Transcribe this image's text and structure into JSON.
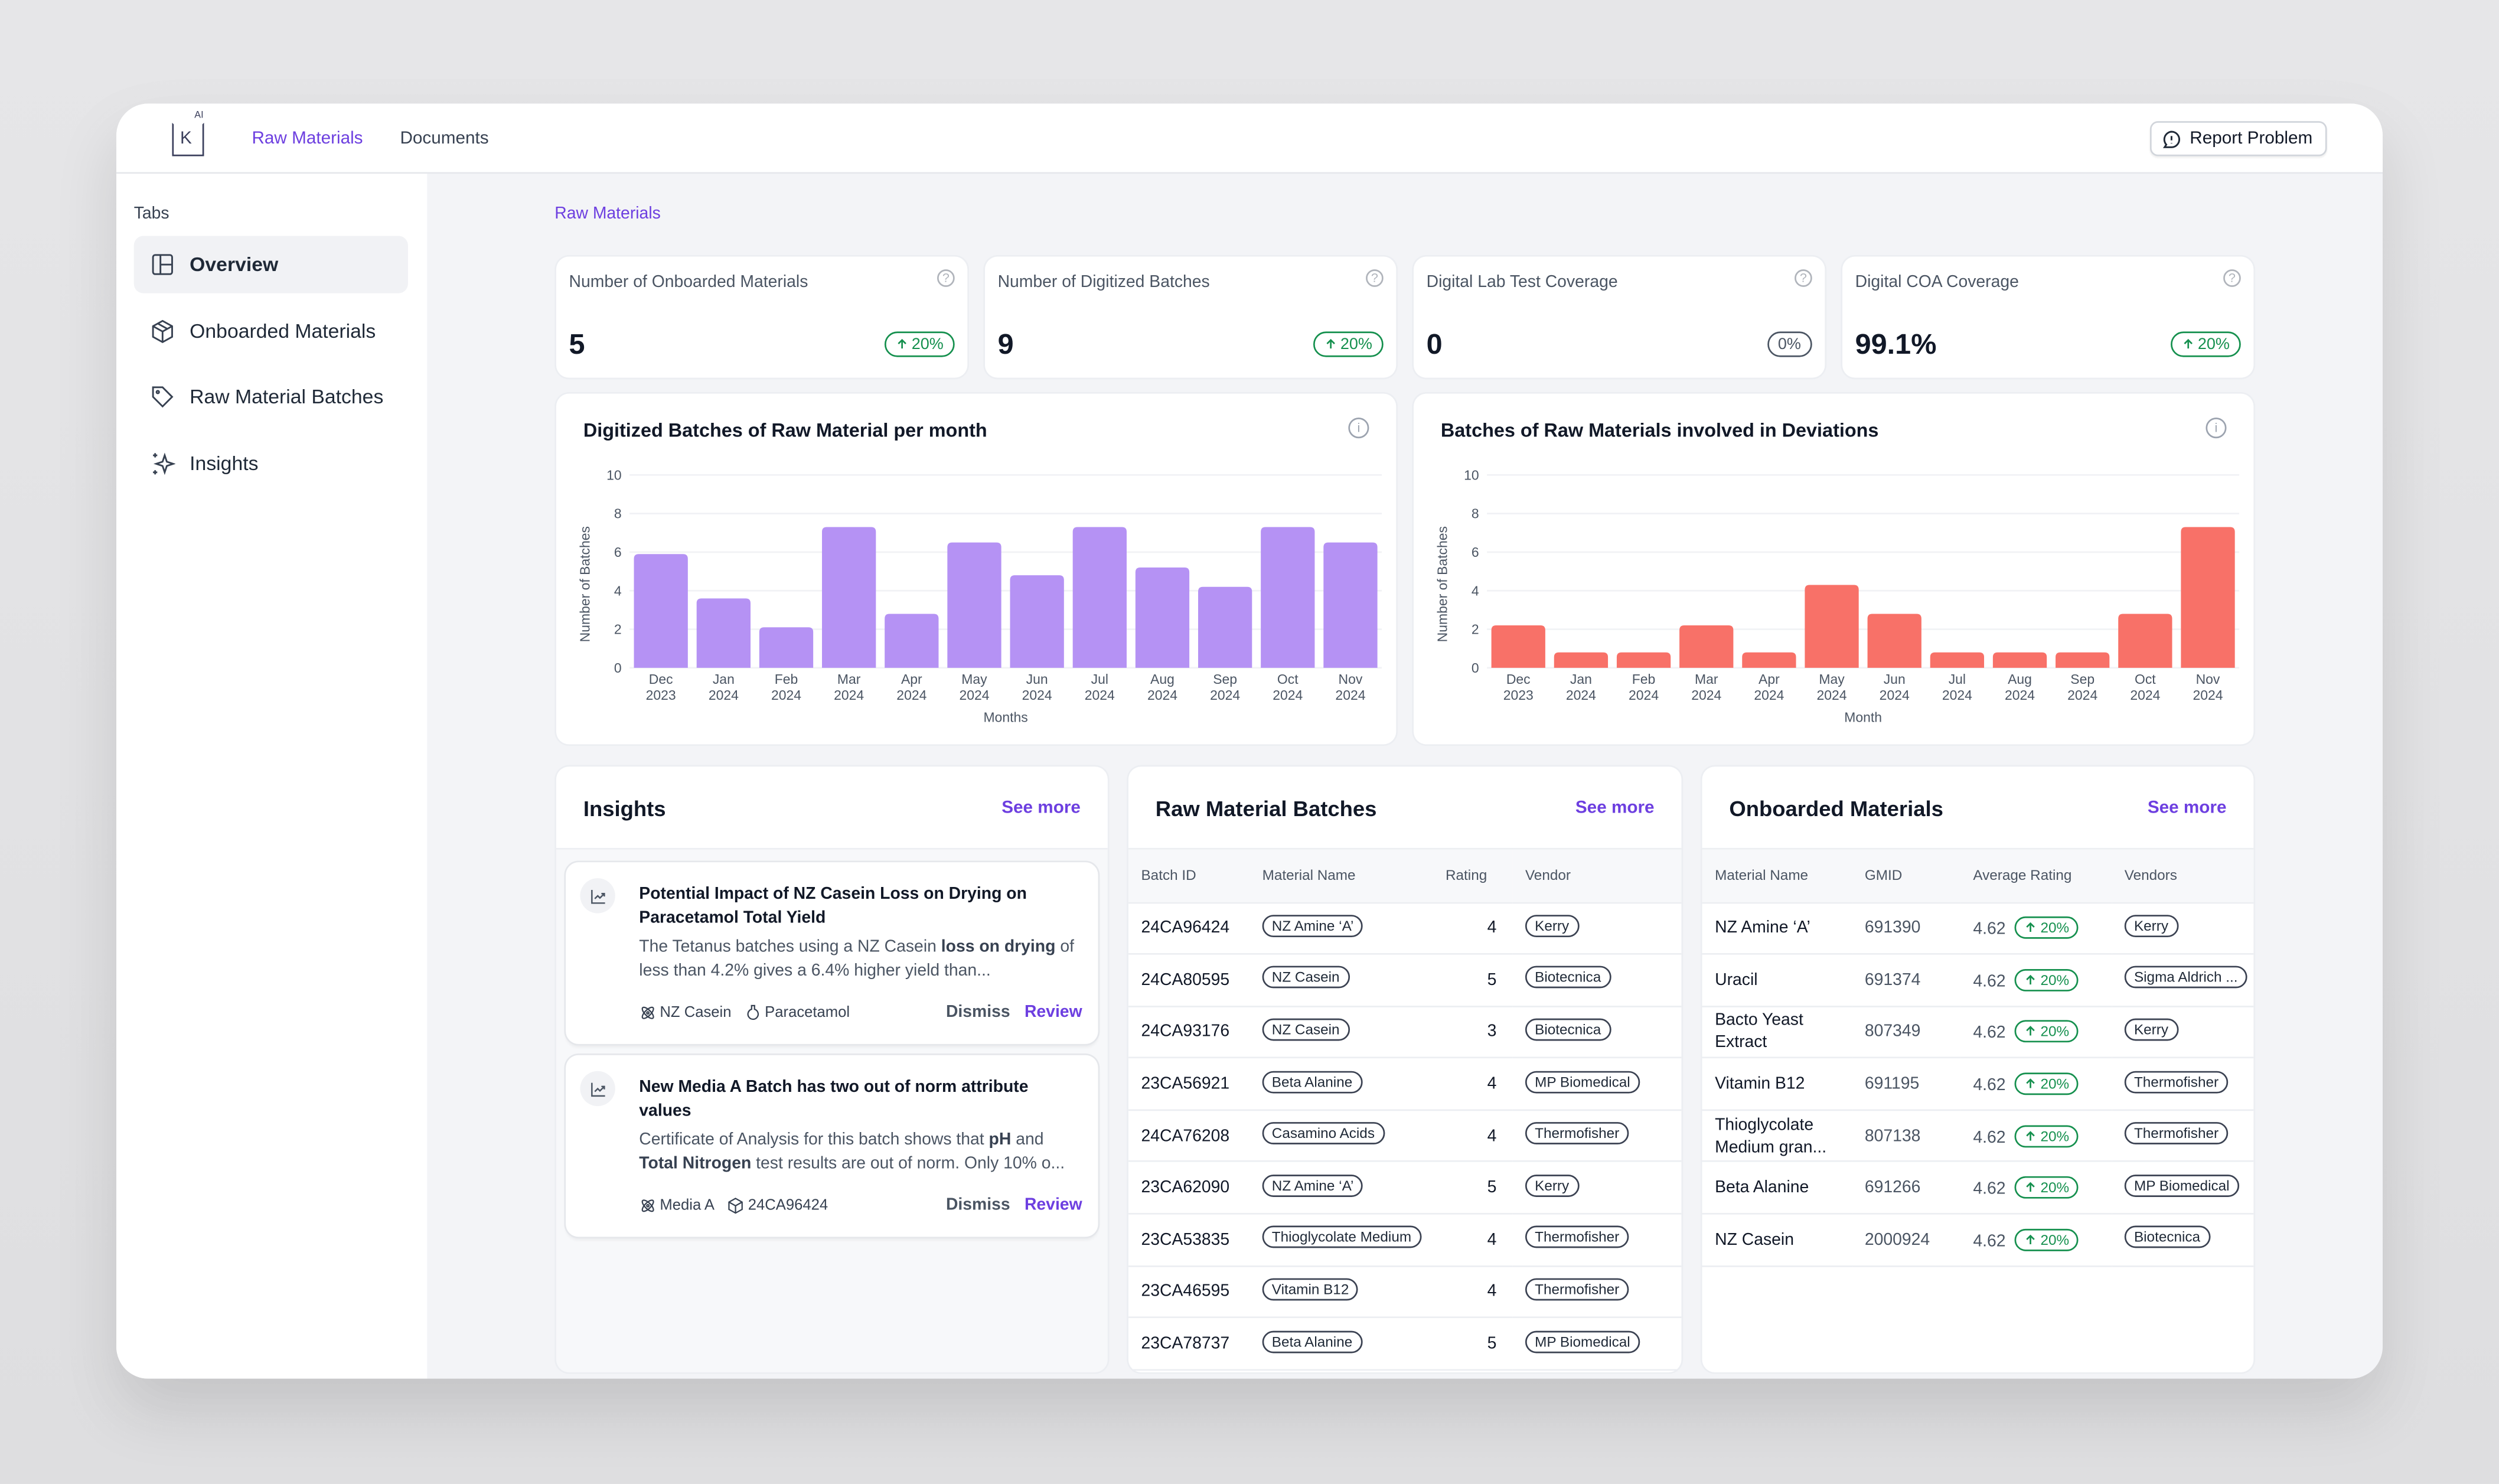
{
  "header": {
    "nav": [
      {
        "label": "Raw Materials",
        "active": true
      },
      {
        "label": "Documents",
        "active": false
      }
    ],
    "logo": {
      "letter": "K",
      "super": "AI"
    },
    "report_button": "Report Problem"
  },
  "sidebar": {
    "label": "Tabs",
    "items": [
      {
        "label": "Overview",
        "icon": "layout-icon",
        "active": true
      },
      {
        "label": "Onboarded Materials",
        "icon": "box-icon"
      },
      {
        "label": "Raw Material Batches",
        "icon": "tag-icon"
      },
      {
        "label": "Insights",
        "icon": "sparkles-icon"
      }
    ]
  },
  "breadcrumb": "Raw Materials",
  "kpis": [
    {
      "title": "Number of Onboarded Materials",
      "value": "5",
      "change": "20%",
      "trend": "up"
    },
    {
      "title": "Number of Digitized Batches",
      "value": "9",
      "change": "20%",
      "trend": "up"
    },
    {
      "title": "Digital Lab Test Coverage",
      "value": "0",
      "change": "0%",
      "trend": "neutral"
    },
    {
      "title": "Digital COA Coverage",
      "value": "99.1%",
      "change": "20%",
      "trend": "up"
    }
  ],
  "chart_data": [
    {
      "type": "bar",
      "title": "Digitized Batches of Raw Material per month",
      "xlabel": "Months",
      "ylabel": "Number of Batches",
      "ylim": [
        0,
        10
      ],
      "yticks": [
        0,
        2,
        4,
        6,
        8,
        10
      ],
      "grid": true,
      "color": "#b592f4",
      "categories": [
        [
          "Dec",
          "2023"
        ],
        [
          "Jan",
          "2024"
        ],
        [
          "Feb",
          "2024"
        ],
        [
          "Mar",
          "2024"
        ],
        [
          "Apr",
          "2024"
        ],
        [
          "May",
          "2024"
        ],
        [
          "Jun",
          "2024"
        ],
        [
          "Jul",
          "2024"
        ],
        [
          "Aug",
          "2024"
        ],
        [
          "Sep",
          "2024"
        ],
        [
          "Oct",
          "2024"
        ],
        [
          "Nov",
          "2024"
        ]
      ],
      "values": [
        5.9,
        3.6,
        2.1,
        7.3,
        2.8,
        6.5,
        4.8,
        7.3,
        5.2,
        4.2,
        7.3,
        6.5
      ]
    },
    {
      "type": "bar",
      "title": "Batches of Raw Materials involved in Deviations",
      "xlabel": "Month",
      "ylabel": "Number of Batches",
      "ylim": [
        0,
        10
      ],
      "yticks": [
        0,
        2,
        4,
        6,
        8,
        10
      ],
      "grid": true,
      "color": "#f87168",
      "categories": [
        [
          "Dec",
          "2023"
        ],
        [
          "Jan",
          "2024"
        ],
        [
          "Feb",
          "2024"
        ],
        [
          "Mar",
          "2024"
        ],
        [
          "Apr",
          "2024"
        ],
        [
          "May",
          "2024"
        ],
        [
          "Jun",
          "2024"
        ],
        [
          "Jul",
          "2024"
        ],
        [
          "Aug",
          "2024"
        ],
        [
          "Sep",
          "2024"
        ],
        [
          "Oct",
          "2024"
        ],
        [
          "Nov",
          "2024"
        ]
      ],
      "values": [
        2.2,
        0.8,
        0.8,
        2.2,
        0.8,
        4.3,
        2.8,
        0.8,
        0.8,
        0.8,
        2.8,
        7.3
      ]
    }
  ],
  "insights": {
    "title": "Insights",
    "see_more": "See more",
    "items": [
      {
        "title": "Potential Impact of NZ Casein Loss on Drying on Paracetamol Total Yield",
        "body": [
          {
            "t": "The Tetanus batches using a NZ Casein "
          },
          {
            "t": "loss on drying",
            "b": true
          },
          {
            "t": " of less than 4.2% gives a 6.4% higher yield than..."
          }
        ],
        "tags": [
          {
            "icon": "molecule-icon",
            "label": "NZ Casein"
          },
          {
            "icon": "flask-icon",
            "label": "Paracetamol"
          }
        ],
        "dismiss": "Dismiss",
        "review": "Review"
      },
      {
        "title": "New Media A Batch has two out of norm attribute values",
        "body": [
          {
            "t": "Certificate of Analysis for this batch shows that "
          },
          {
            "t": "pH",
            "b": true
          },
          {
            "t": " and "
          },
          {
            "t": "Total Nitrogen",
            "b": true
          },
          {
            "t": " test results are out of norm. Only 10% o..."
          }
        ],
        "tags": [
          {
            "icon": "molecule-icon",
            "label": "Media A"
          },
          {
            "icon": "box-icon",
            "label": "24CA96424"
          }
        ],
        "dismiss": "Dismiss",
        "review": "Review"
      }
    ]
  },
  "batches": {
    "title": "Raw Material Batches",
    "see_more": "See more",
    "columns": [
      "Batch ID",
      "Material Name",
      "Rating",
      "Vendor"
    ],
    "rows": [
      [
        "24CA96424",
        "NZ Amine ‘A’",
        "4",
        "Kerry"
      ],
      [
        "24CA80595",
        "NZ Casein",
        "5",
        "Biotecnica"
      ],
      [
        "24CA93176",
        "NZ Casein",
        "3",
        "Biotecnica"
      ],
      [
        "23CA56921",
        "Beta Alanine",
        "4",
        "MP Biomedical"
      ],
      [
        "24CA76208",
        "Casamino Acids",
        "4",
        "Thermofisher"
      ],
      [
        "23CA62090",
        "NZ Amine ‘A’",
        "5",
        "Kerry"
      ],
      [
        "23CA53835",
        "Thioglycolate Medium",
        "4",
        "Thermofisher"
      ],
      [
        "23CA46595",
        "Vitamin B12",
        "4",
        "Thermofisher"
      ],
      [
        "23CA78737",
        "Beta Alanine",
        "5",
        "MP Biomedical"
      ]
    ]
  },
  "materials": {
    "title": "Onboarded Materials",
    "see_more": "See more",
    "columns": [
      "Material Name",
      "GMID",
      "Average Rating",
      "Vendors"
    ],
    "rows": [
      [
        "NZ Amine ‘A’",
        "691390",
        "4.62",
        "20%",
        "Kerry"
      ],
      [
        "Uracil",
        "691374",
        "4.62",
        "20%",
        "Sigma Aldrich ..."
      ],
      [
        "Bacto Yeast Extract",
        "807349",
        "4.62",
        "20%",
        "Kerry"
      ],
      [
        "Vitamin B12",
        "691195",
        "4.62",
        "20%",
        "Thermofisher"
      ],
      [
        "Thioglycolate Medium gran...",
        "807138",
        "4.62",
        "20%",
        "Thermofisher"
      ],
      [
        "Beta Alanine",
        "691266",
        "4.62",
        "20%",
        "MP Biomedical"
      ],
      [
        "NZ Casein",
        "2000924",
        "4.62",
        "20%",
        "Biotecnica"
      ]
    ]
  },
  "colors": {
    "accent": "#6d3fe0",
    "positive": "#15904e",
    "bar_primary": "#b592f4",
    "bar_deviation": "#f87168"
  }
}
